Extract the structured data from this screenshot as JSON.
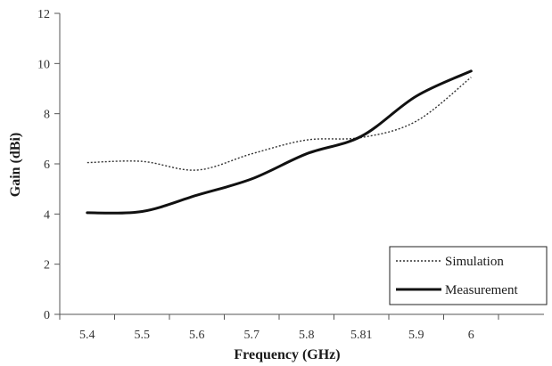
{
  "chart_data": {
    "type": "line",
    "title": "",
    "xlabel": "Frequency (GHz)",
    "ylabel": "Gain (dBi)",
    "categories": [
      "5.4",
      "5.5",
      "5.6",
      "5.7",
      "5.8",
      "5.81",
      "5.9",
      "6"
    ],
    "ylim": [
      0,
      12
    ],
    "yticks": [
      0,
      2,
      4,
      6,
      8,
      10,
      12
    ],
    "grid": false,
    "legend_position": "bottom-right",
    "series": [
      {
        "name": "Simulation",
        "style": "dotted",
        "color": "#333333",
        "values": [
          6.05,
          6.1,
          5.75,
          6.4,
          6.95,
          7.05,
          7.7,
          9.45
        ]
      },
      {
        "name": "Measurement",
        "style": "solid",
        "color": "#111111",
        "values": [
          4.05,
          4.1,
          4.75,
          5.4,
          6.4,
          7.1,
          8.7,
          9.7
        ]
      }
    ]
  }
}
